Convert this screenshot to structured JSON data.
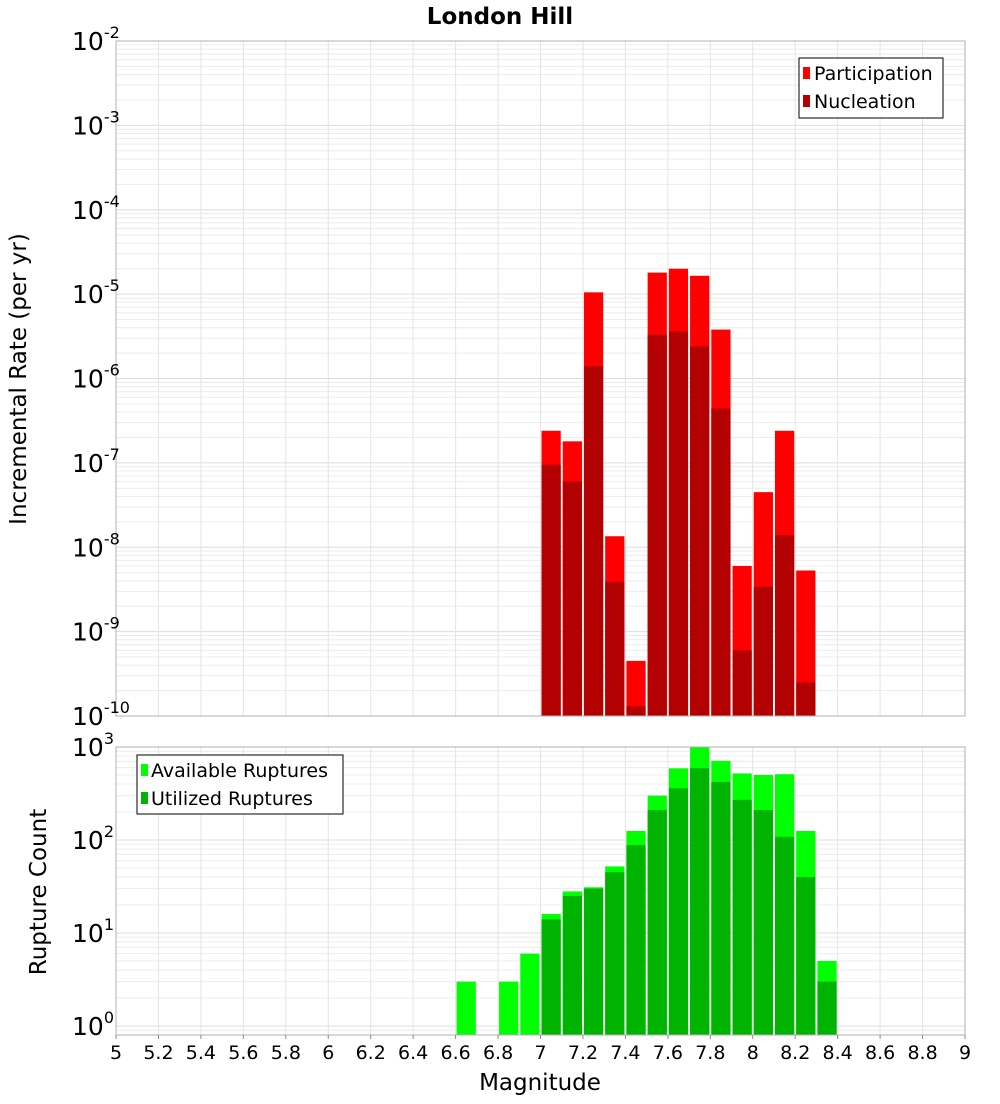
{
  "chart_data": [
    {
      "type": "bar",
      "title": "London Hill",
      "ylabel": "Incremental Rate (per yr)",
      "xlabel": "",
      "yscale": "log",
      "xlim": [
        5,
        9
      ],
      "ylim": [
        1e-10,
        0.01
      ],
      "bar_width": 0.1,
      "legend_position": "top-right",
      "grid": true,
      "x": [
        7.0,
        7.1,
        7.2,
        7.3,
        7.4,
        7.5,
        7.6,
        7.7,
        7.8,
        7.9,
        8.0,
        8.1,
        8.2
      ],
      "series": [
        {
          "name": "Participation",
          "color": "#ff0000",
          "values": [
            2.4e-07,
            1.8e-07,
            1.05e-05,
            1.35e-08,
            4.5e-10,
            1.8e-05,
            2e-05,
            1.65e-05,
            3.8e-06,
            6e-09,
            4.5e-08,
            2.4e-07,
            5.3e-09
          ]
        },
        {
          "name": "Nucleation",
          "color": "#b30000",
          "values": [
            9.5e-08,
            6e-08,
            1.4e-06,
            3.9e-09,
            1.3e-10,
            3.3e-06,
            3.6e-06,
            2.4e-06,
            4.4e-07,
            6e-10,
            3.4e-09,
            1.4e-08,
            2.5e-10
          ]
        }
      ],
      "yticks": [
        {
          "base": "10",
          "exp": "-10"
        },
        {
          "base": "10",
          "exp": "-9"
        },
        {
          "base": "10",
          "exp": "-8"
        },
        {
          "base": "10",
          "exp": "-7"
        },
        {
          "base": "10",
          "exp": "-6"
        },
        {
          "base": "10",
          "exp": "-5"
        },
        {
          "base": "10",
          "exp": "-4"
        },
        {
          "base": "10",
          "exp": "-3"
        },
        {
          "base": "10",
          "exp": "-2"
        }
      ]
    },
    {
      "type": "bar",
      "title": "",
      "ylabel": "Rupture Count",
      "xlabel": "Magnitude",
      "yscale": "log",
      "xlim": [
        5,
        9
      ],
      "ylim": [
        0.8,
        1000
      ],
      "bar_width": 0.1,
      "legend_position": "top-left",
      "grid": true,
      "x": [
        6.6,
        6.7,
        6.8,
        6.9,
        7.0,
        7.1,
        7.2,
        7.3,
        7.4,
        7.5,
        7.6,
        7.7,
        7.8,
        7.9,
        8.0,
        8.1,
        8.2,
        8.3
      ],
      "series": [
        {
          "name": "Available Ruptures",
          "color": "#00ff00",
          "values": [
            3,
            0,
            3,
            6,
            16,
            28,
            31,
            52,
            125,
            300,
            590,
            1000,
            710,
            520,
            500,
            510,
            125,
            5
          ]
        },
        {
          "name": "Utilized Ruptures",
          "color": "#00b300",
          "values": [
            0,
            0,
            0,
            0,
            14,
            25,
            30,
            45,
            88,
            210,
            360,
            590,
            420,
            270,
            210,
            108,
            40,
            3
          ]
        }
      ],
      "xticks": [
        "5",
        "5.2",
        "5.4",
        "5.6",
        "5.8",
        "6",
        "6.2",
        "6.4",
        "6.6",
        "6.8",
        "7",
        "7.2",
        "7.4",
        "7.6",
        "7.8",
        "8",
        "8.2",
        "8.4",
        "8.6",
        "8.8",
        "9"
      ],
      "yticks": [
        {
          "base": "10",
          "exp": "0"
        },
        {
          "base": "10",
          "exp": "1"
        },
        {
          "base": "10",
          "exp": "2"
        },
        {
          "base": "10",
          "exp": "3"
        }
      ]
    }
  ]
}
